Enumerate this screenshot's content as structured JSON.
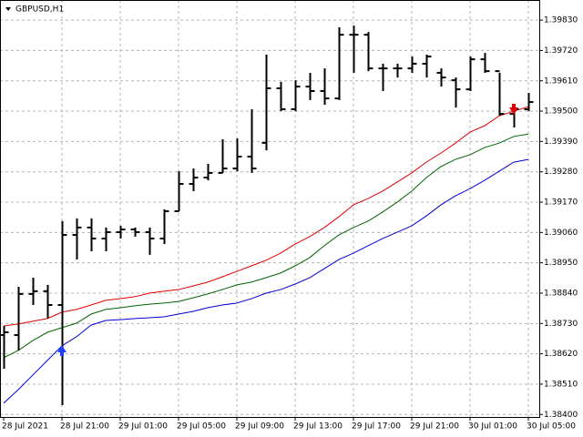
{
  "chart_data": {
    "type": "ohlc",
    "title": "GBPUSD,H1",
    "categories": [
      "28 Jul 2021",
      null,
      null,
      null,
      "28 Jul 21:00",
      null,
      null,
      null,
      "29 Jul 01:00",
      null,
      null,
      null,
      "29 Jul 05:00",
      null,
      null,
      null,
      "29 Jul 09:00",
      null,
      null,
      null,
      "29 Jul 13:00",
      null,
      null,
      null,
      "29 Jul 17:00",
      null,
      null,
      null,
      "29 Jul 21:00",
      null,
      null,
      null,
      "30 Jul 01:00",
      null,
      null,
      null,
      "30 Jul 05:00"
    ],
    "open": [
      1.38688,
      1.38688,
      1.38837,
      1.38847,
      1.38797,
      1.39051,
      1.39078,
      1.39038,
      1.39061,
      1.39071,
      1.39061,
      1.39038,
      1.39137,
      1.39236,
      1.39259,
      1.39276,
      1.39292,
      1.39335,
      1.39385,
      1.39583,
      1.39507,
      1.39589,
      1.39573,
      1.39546,
      1.39777,
      1.39777,
      1.39655,
      1.39655,
      1.39655,
      1.39672,
      1.39639,
      1.39612,
      1.39579,
      1.39688,
      1.39645,
      1.3949,
      1.39507
    ],
    "high": [
      1.38721,
      1.38863,
      1.38896,
      1.3887,
      1.39101,
      1.39111,
      1.39111,
      1.39078,
      1.39084,
      1.39078,
      1.39078,
      1.39144,
      1.39282,
      1.39292,
      1.39309,
      1.39398,
      1.39401,
      1.39507,
      1.39705,
      1.39606,
      1.39612,
      1.39639,
      1.39655,
      1.39804,
      1.3981,
      1.39787,
      1.39672,
      1.39672,
      1.39698,
      1.39705,
      1.39655,
      1.39622,
      1.39698,
      1.39711,
      1.39639,
      1.39523,
      1.39566
    ],
    "low": [
      1.38566,
      1.38632,
      1.38797,
      1.38748,
      1.38434,
      1.38962,
      1.38992,
      1.38992,
      1.39038,
      1.39045,
      1.38979,
      1.39018,
      1.39137,
      1.3921,
      1.39249,
      1.39276,
      1.39282,
      1.39276,
      1.39358,
      1.395,
      1.395,
      1.3954,
      1.39523,
      1.3954,
      1.39639,
      1.39645,
      1.39573,
      1.39622,
      1.39639,
      1.39622,
      1.39589,
      1.39513,
      1.39573,
      1.39639,
      1.39484,
      1.39441,
      1.395
    ],
    "close": [
      1.38698,
      1.38837,
      1.38847,
      1.38797,
      1.39051,
      1.39078,
      1.39038,
      1.39061,
      1.39071,
      1.39061,
      1.39038,
      1.39137,
      1.39236,
      1.39259,
      1.39276,
      1.39292,
      1.39335,
      1.39292,
      1.39583,
      1.39507,
      1.39589,
      1.39573,
      1.39546,
      1.39777,
      1.39777,
      1.39655,
      1.39655,
      1.39655,
      1.39672,
      1.39698,
      1.39622,
      1.39579,
      1.39688,
      1.39645,
      1.3949,
      1.39507,
      1.39533
    ],
    "color": "#000000",
    "series": [
      {
        "color": "#e00000",
        "values": [
          1.38721,
          1.38728,
          1.38738,
          1.38748,
          1.38771,
          1.38781,
          1.38797,
          1.38814,
          1.3882,
          1.38827,
          1.3884,
          1.38847,
          1.38853,
          1.38866,
          1.3888,
          1.38899,
          1.38919,
          1.38939,
          1.38959,
          1.38985,
          1.39018,
          1.39045,
          1.39078,
          1.39117,
          1.3916,
          1.39183,
          1.3921,
          1.39243,
          1.39276,
          1.39315,
          1.39348,
          1.39384,
          1.39424,
          1.39447,
          1.39483,
          1.395,
          1.39516
        ]
      },
      {
        "color": "#006400",
        "values": [
          1.38606,
          1.38632,
          1.38668,
          1.38698,
          1.38715,
          1.38731,
          1.38764,
          1.38781,
          1.38787,
          1.38794,
          1.388,
          1.38804,
          1.3881,
          1.38823,
          1.38837,
          1.38853,
          1.3887,
          1.3888,
          1.38896,
          1.38913,
          1.38939,
          1.38969,
          1.39012,
          1.39051,
          1.39078,
          1.39101,
          1.39134,
          1.3917,
          1.3921,
          1.39259,
          1.39299,
          1.39325,
          1.39342,
          1.39368,
          1.39384,
          1.39408,
          1.39417
        ]
      },
      {
        "color": "#0000d0",
        "values": [
          1.38441,
          1.3849,
          1.38543,
          1.38596,
          1.38649,
          1.38682,
          1.38724,
          1.38741,
          1.38744,
          1.38748,
          1.38751,
          1.38754,
          1.38764,
          1.38774,
          1.38787,
          1.38797,
          1.38804,
          1.3882,
          1.3884,
          1.38853,
          1.38873,
          1.38896,
          1.38929,
          1.38962,
          1.38985,
          1.39012,
          1.39038,
          1.39061,
          1.39084,
          1.3912,
          1.3916,
          1.39193,
          1.39219,
          1.39249,
          1.39282,
          1.39315,
          1.39325
        ]
      }
    ],
    "markers": [
      {
        "shape": "up",
        "color": "#2040ff",
        "values": [
          null,
          null,
          null,
          null,
          1.38632,
          null,
          null,
          null,
          null,
          null,
          null,
          null,
          null,
          null,
          null,
          null,
          null,
          null,
          null,
          null,
          null,
          null,
          null,
          null,
          null,
          null,
          null,
          null,
          null,
          null,
          null,
          null,
          null,
          null,
          null,
          null,
          null
        ]
      },
      {
        "shape": "down",
        "color": "#e00000",
        "values": [
          null,
          null,
          null,
          null,
          null,
          null,
          null,
          null,
          null,
          null,
          null,
          null,
          null,
          null,
          null,
          null,
          null,
          null,
          null,
          null,
          null,
          null,
          null,
          null,
          null,
          null,
          null,
          null,
          null,
          null,
          null,
          null,
          null,
          null,
          null,
          1.39507,
          null
        ]
      }
    ],
    "ylim": [
      1.38391,
      1.39903
    ],
    "yticks": [
      {
        "value": 1.3983,
        "label": "1.39830"
      },
      {
        "value": 1.3972,
        "label": "1.39720"
      },
      {
        "value": 1.3961,
        "label": "1.39610"
      },
      {
        "value": 1.395,
        "label": "1.39500"
      },
      {
        "value": 1.3939,
        "label": "1.39390"
      },
      {
        "value": 1.3928,
        "label": "1.39280"
      },
      {
        "value": 1.3917,
        "label": "1.39170"
      },
      {
        "value": 1.3906,
        "label": "1.39060"
      },
      {
        "value": 1.3895,
        "label": "1.38950"
      },
      {
        "value": 1.3884,
        "label": "1.38840"
      },
      {
        "value": 1.3873,
        "label": "1.38730"
      },
      {
        "value": 1.3862,
        "label": "1.38620"
      },
      {
        "value": 1.3851,
        "label": "1.38510"
      },
      {
        "value": 1.384,
        "label": "1.38400"
      }
    ],
    "grid": true
  }
}
